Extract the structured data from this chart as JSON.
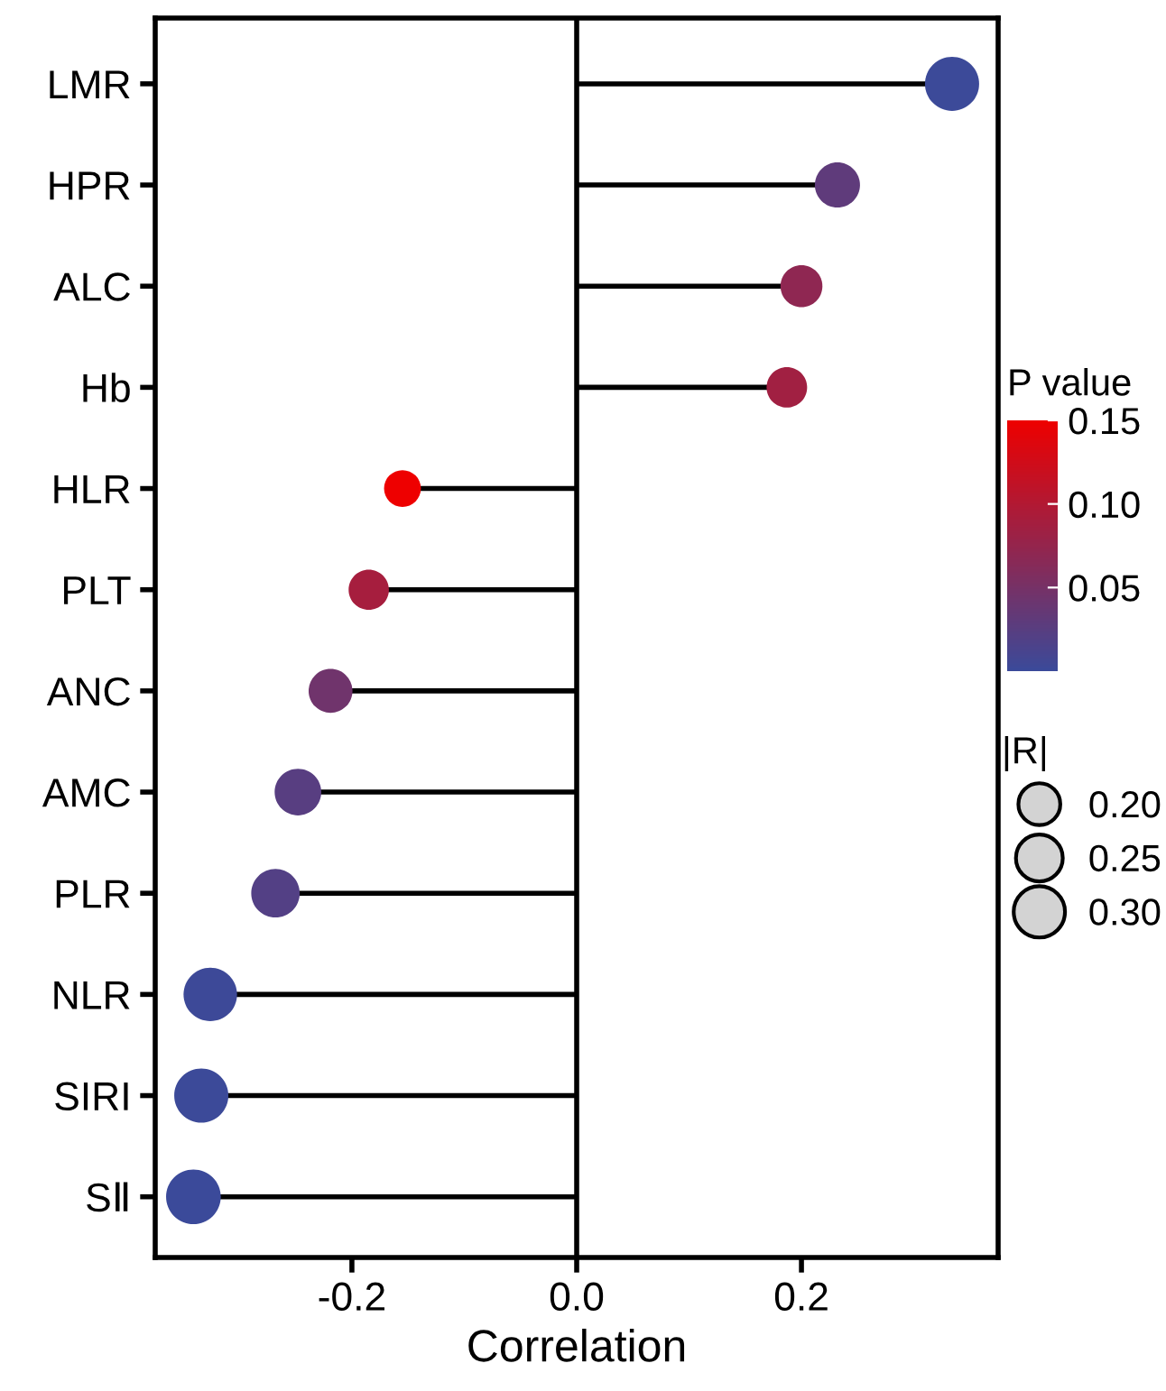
{
  "chart_data": {
    "type": "lollipop",
    "orientation": "horizontal",
    "xlabel": "Correlation",
    "clabel": "P value",
    "legend_title": "|R|",
    "categories": [
      "LMR",
      "HPR",
      "ALC",
      "Hb",
      "HLR",
      "PLT",
      "ANC",
      "AMC",
      "PLR",
      "NLR",
      "SIRI",
      "SⅡ"
    ],
    "values": [
      0.334,
      0.232,
      0.2,
      0.187,
      -0.155,
      -0.185,
      -0.219,
      -0.248,
      -0.268,
      -0.326,
      -0.334,
      -0.341
    ],
    "cvalues": [
      0.001,
      0.03,
      0.07,
      0.085,
      0.15,
      0.09,
      0.045,
      0.025,
      0.02,
      0.002,
      0.001,
      0.0005
    ],
    "sizes": [
      0.334,
      0.232,
      0.2,
      0.187,
      0.155,
      0.185,
      0.219,
      0.248,
      0.268,
      0.326,
      0.334,
      0.341
    ],
    "size_legend": [
      {
        "value": 0.2,
        "label": "0.20"
      },
      {
        "value": 0.25,
        "label": "0.25"
      },
      {
        "value": 0.3,
        "label": "0.30"
      }
    ],
    "clim": [
      0,
      0.15
    ],
    "cticks": [
      {
        "value": 0.05,
        "label": "0.05"
      },
      {
        "value": 0.1,
        "label": "0.10"
      },
      {
        "value": 0.15,
        "label": "0.15"
      }
    ],
    "xlim": [
      -0.375,
      0.375
    ],
    "xticks": [
      -0.2,
      {
        "value": 0,
        "label": "0.0"
      },
      0.2
    ],
    "ref_lines": [
      {
        "axis": "x",
        "value": 0,
        "color": "#000000"
      }
    ],
    "marker": "circle",
    "grid": false
  }
}
